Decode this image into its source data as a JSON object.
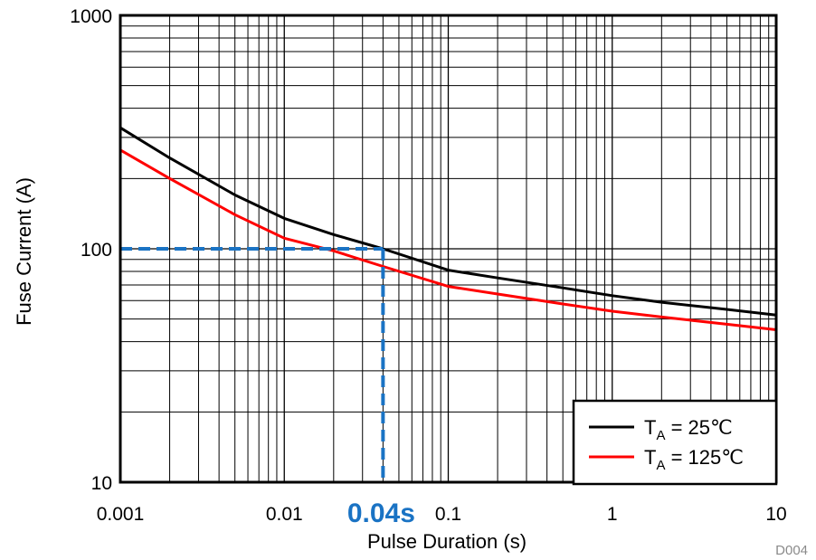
{
  "chart_data": {
    "type": "line",
    "xlabel": "Pulse Duration (s)",
    "ylabel": "Fuse Current (A)",
    "x_scale": "log",
    "y_scale": "log",
    "xlim": [
      0.001,
      10
    ],
    "ylim": [
      10,
      1000
    ],
    "x_ticks": [
      {
        "value": 0.001,
        "label": "0.001"
      },
      {
        "value": 0.01,
        "label": "0.01"
      },
      {
        "value": 0.1,
        "label": "0.1"
      },
      {
        "value": 1,
        "label": "1"
      },
      {
        "value": 10,
        "label": "10"
      }
    ],
    "y_ticks": [
      {
        "value": 10,
        "label": "10"
      },
      {
        "value": 100,
        "label": "100"
      },
      {
        "value": 1000,
        "label": "1000"
      }
    ],
    "grid": true,
    "legend": {
      "position": "bottom-right",
      "entries": [
        {
          "prefix": "T",
          "sub": "A",
          "suffix": " = 25℃"
        },
        {
          "prefix": "T",
          "sub": "A",
          "suffix": " = 125℃"
        }
      ]
    },
    "series": [
      {
        "color": "#000000",
        "x": [
          0.001,
          0.002,
          0.005,
          0.01,
          0.02,
          0.04,
          0.1,
          0.2,
          0.5,
          1,
          2,
          5,
          10
        ],
        "y": [
          330,
          245,
          170,
          135,
          115,
          100,
          81,
          75,
          68,
          63,
          59,
          55,
          52
        ]
      },
      {
        "color": "#ff0000",
        "x": [
          0.001,
          0.002,
          0.005,
          0.01,
          0.02,
          0.04,
          0.1,
          0.2,
          0.5,
          1,
          2,
          5,
          10
        ],
        "y": [
          265,
          200,
          140,
          111,
          98,
          84,
          69,
          64,
          58,
          54,
          51,
          47.5,
          45
        ]
      }
    ],
    "annotations": [
      {
        "text": "0.04s",
        "x": 0.04,
        "y": 100,
        "color": "#1a73c4",
        "style": "dashed-crosshair"
      }
    ],
    "figure_id": "D004"
  }
}
